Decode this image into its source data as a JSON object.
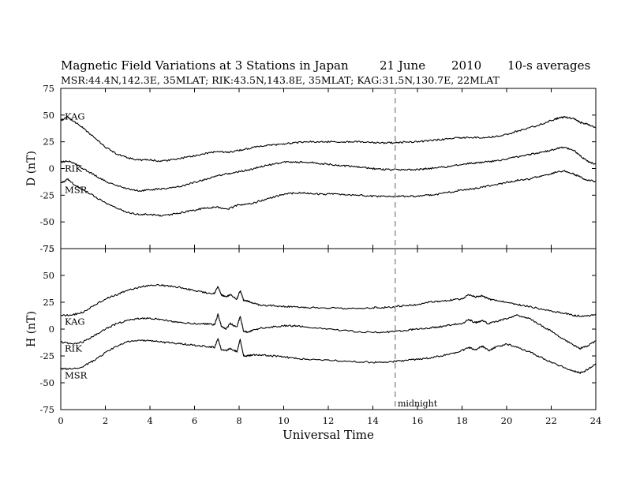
{
  "header": {
    "title_parts": [
      "Magnetic Field Variations at 3 Stations in Japan",
      "21 June",
      "2010",
      "10-s averages"
    ],
    "subtitle": "MSR:44.4N,142.3E, 35MLAT;  RIK:43.5N,143.8E, 35MLAT;  KAG:31.5N,130.7E, 22MLAT"
  },
  "chart_data": {
    "type": "line",
    "xlabel": "Universal Time",
    "xlim": [
      0,
      24
    ],
    "x_ticks": [
      "0",
      "2",
      "4",
      "6",
      "8",
      "10",
      "12",
      "14",
      "16",
      "18",
      "20",
      "22",
      "24"
    ],
    "marker": {
      "x": 15,
      "label": "midnight",
      "style": "dashed",
      "color": "#9a9a9a"
    },
    "panels": [
      {
        "ylabel": "D (nT)",
        "ylim": [
          -75,
          75
        ],
        "y_ticks": [
          "75",
          "50",
          "25",
          "0",
          "-25",
          "-50",
          "-75"
        ],
        "series": [
          {
            "name": "KAG",
            "x": [
              0,
              0.3,
              0.6,
              1,
              1.5,
              2,
              2.5,
              3,
              3.5,
              4,
              4.5,
              5,
              5.5,
              6,
              6.5,
              7,
              7.5,
              8,
              8.5,
              9,
              9.5,
              10,
              10.5,
              11,
              11.5,
              12,
              12.5,
              13,
              13.5,
              14,
              14.5,
              15,
              15.5,
              16,
              16.5,
              17,
              17.5,
              18,
              18.5,
              19,
              19.5,
              20,
              20.5,
              21,
              21.5,
              22,
              22.3,
              22.6,
              23,
              23.3,
              23.6,
              24
            ],
            "y": [
              45,
              48,
              44,
              38,
              29,
              20,
              14,
              10,
              8,
              8,
              7,
              8,
              10,
              12,
              14,
              16,
              15,
              17,
              19,
              21,
              22,
              23,
              24,
              25,
              25,
              25,
              25,
              25,
              25,
              24,
              24,
              24,
              25,
              25,
              26,
              27,
              28,
              29,
              29,
              29,
              30,
              32,
              35,
              38,
              41,
              45,
              47,
              48,
              47,
              43,
              42,
              38
            ]
          },
          {
            "name": "RIK",
            "x": [
              0,
              0.3,
              0.6,
              1,
              1.5,
              2,
              2.5,
              3,
              3.5,
              4,
              4.5,
              5,
              5.5,
              6,
              6.5,
              7,
              7.5,
              8,
              8.5,
              9,
              9.5,
              10,
              10.5,
              11,
              11.5,
              12,
              12.5,
              13,
              13.5,
              14,
              14.5,
              15,
              15.5,
              16,
              16.5,
              17,
              17.5,
              18,
              18.5,
              19,
              19.5,
              20,
              20.5,
              21,
              21.5,
              22,
              22.3,
              22.6,
              23,
              23.3,
              23.6,
              24
            ],
            "y": [
              6,
              7,
              5,
              0,
              -6,
              -12,
              -16,
              -19,
              -21,
              -20,
              -19,
              -18,
              -16,
              -13,
              -10,
              -7,
              -5,
              -3,
              -1,
              2,
              4,
              6,
              6,
              6,
              5,
              4,
              3,
              2,
              1,
              0,
              -1,
              -1,
              -1,
              -1,
              0,
              1,
              2,
              4,
              5,
              6,
              7,
              9,
              11,
              13,
              15,
              17,
              19,
              20,
              17,
              12,
              7,
              4
            ]
          },
          {
            "name": "MSR",
            "x": [
              0,
              0.3,
              0.6,
              1,
              1.5,
              2,
              2.5,
              3,
              3.5,
              4,
              4.5,
              5,
              5.5,
              6,
              6.5,
              7,
              7.5,
              8,
              8.5,
              9,
              9.5,
              10,
              10.5,
              11,
              11.5,
              12,
              12.5,
              13,
              13.5,
              14,
              14.5,
              15,
              15.5,
              16,
              16.5,
              17,
              17.5,
              18,
              18.5,
              19,
              19.5,
              20,
              20.5,
              21,
              21.5,
              22,
              22.3,
              22.6,
              23,
              23.3,
              23.6,
              24
            ],
            "y": [
              -14,
              -10,
              -15,
              -20,
              -26,
              -32,
              -37,
              -41,
              -43,
              -43,
              -44,
              -43,
              -41,
              -39,
              -37,
              -36,
              -38,
              -34,
              -33,
              -30,
              -27,
              -24,
              -23,
              -23,
              -24,
              -24,
              -24,
              -25,
              -25,
              -26,
              -26,
              -26,
              -26,
              -26,
              -25,
              -24,
              -22,
              -20,
              -19,
              -17,
              -15,
              -13,
              -11,
              -10,
              -7,
              -5,
              -3,
              -2,
              -5,
              -8,
              -11,
              -12
            ]
          }
        ]
      },
      {
        "ylabel": "H (nT)",
        "ylim": [
          -75,
          75
        ],
        "y_ticks": [
          "75",
          "50",
          "25",
          "0",
          "-25",
          "-50",
          "-75"
        ],
        "series": [
          {
            "name": "KAG",
            "x": [
              0,
              0.5,
              1,
              1.5,
              2,
              2.5,
              3,
              3.5,
              4,
              4.5,
              5,
              5.5,
              6,
              6.5,
              6.9,
              7.05,
              7.2,
              7.4,
              7.6,
              7.9,
              8.05,
              8.2,
              8.4,
              8.6,
              9,
              9.5,
              10,
              10.5,
              11,
              12,
              13,
              14,
              14.5,
              15,
              15.5,
              16,
              16.5,
              17,
              17.5,
              18,
              18.3,
              18.6,
              18.9,
              19.2,
              19.5,
              20,
              20.5,
              21,
              21.5,
              22,
              22.5,
              23,
              23.3,
              23.6,
              24
            ],
            "y": [
              13,
              13,
              16,
              22,
              28,
              32,
              36,
              39,
              41,
              41,
              40,
              38,
              36,
              34,
              33,
              40,
              32,
              30,
              32,
              28,
              36,
              27,
              26,
              24,
              22,
              22,
              21,
              21,
              20,
              20,
              19,
              20,
              20,
              21,
              22,
              23,
              25,
              26,
              27,
              28,
              32,
              30,
              31,
              28,
              27,
              25,
              23,
              21,
              19,
              17,
              15,
              13,
              12,
              12,
              14
            ]
          },
          {
            "name": "RIK",
            "x": [
              0,
              0.5,
              1,
              1.5,
              2,
              2.5,
              3,
              3.5,
              4,
              4.5,
              5,
              5.5,
              6,
              6.5,
              6.9,
              7.05,
              7.2,
              7.4,
              7.6,
              7.9,
              8.05,
              8.2,
              8.4,
              8.6,
              9,
              9.5,
              10,
              10.5,
              11,
              12,
              13,
              14,
              14.5,
              15,
              15.5,
              16,
              16.5,
              17,
              17.5,
              18,
              18.3,
              18.6,
              18.9,
              19.2,
              19.5,
              20,
              20.5,
              21,
              21.5,
              22,
              22.5,
              23,
              23.3,
              23.6,
              24
            ],
            "y": [
              -12,
              -14,
              -12,
              -6,
              0,
              5,
              8,
              10,
              10,
              9,
              7,
              6,
              5,
              5,
              4,
              14,
              3,
              0,
              5,
              2,
              12,
              -2,
              -3,
              -1,
              1,
              2,
              3,
              3,
              2,
              0,
              -2,
              -3,
              -3,
              -2,
              -1,
              0,
              1,
              2,
              4,
              5,
              9,
              6,
              8,
              5,
              7,
              10,
              13,
              10,
              4,
              -2,
              -9,
              -15,
              -18,
              -16,
              -11
            ]
          },
          {
            "name": "MSR",
            "x": [
              0,
              0.5,
              1,
              1.5,
              2,
              2.5,
              3,
              3.5,
              4,
              4.5,
              5,
              5.5,
              6,
              6.5,
              6.9,
              7.05,
              7.2,
              7.4,
              7.6,
              7.9,
              8.05,
              8.2,
              8.4,
              8.6,
              9,
              9.5,
              10,
              10.5,
              11,
              12,
              13,
              14,
              14.5,
              15,
              15.5,
              16,
              16.5,
              17,
              17.5,
              18,
              18.3,
              18.6,
              18.9,
              19.2,
              19.5,
              20,
              20.5,
              21,
              21.5,
              22,
              22.5,
              23,
              23.3,
              23.6,
              24
            ],
            "y": [
              -37,
              -37,
              -35,
              -29,
              -22,
              -16,
              -12,
              -10,
              -11,
              -12,
              -13,
              -14,
              -15,
              -16,
              -17,
              -9,
              -19,
              -20,
              -18,
              -21,
              -10,
              -25,
              -25,
              -24,
              -24,
              -25,
              -26,
              -27,
              -28,
              -29,
              -30,
              -31,
              -31,
              -30,
              -29,
              -28,
              -27,
              -25,
              -23,
              -20,
              -17,
              -19,
              -16,
              -20,
              -17,
              -14,
              -17,
              -21,
              -26,
              -31,
              -35,
              -39,
              -41,
              -38,
              -32
            ]
          }
        ]
      }
    ]
  }
}
